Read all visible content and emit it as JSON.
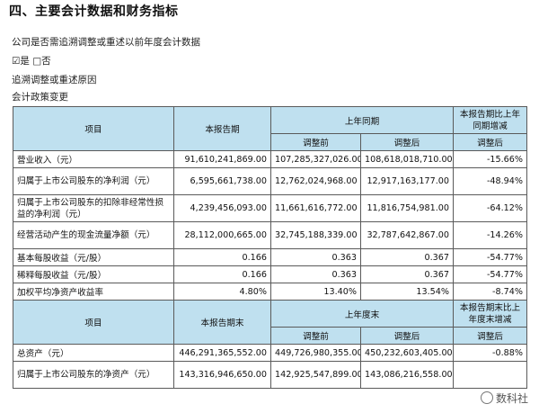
{
  "section_title": "四、主要会计数据和财务指标",
  "question": "公司是否需追溯调整或重述以前年度会计数据",
  "checkbox_yes": "☑是",
  "checkbox_no": "□否",
  "reason_label": "追溯调整或重述原因",
  "policy_change": "会计政策变更",
  "table1": {
    "header": {
      "item": "项目",
      "current": "本报告期",
      "prior_year": "上年同期",
      "change": "本报告期比上年同期增减",
      "before": "调整前",
      "after": "调整后",
      "after_change": "调整后"
    },
    "rows": [
      {
        "label": "营业收入（元）",
        "current": "91,610,241,869.00",
        "before": "107,285,327,026.00",
        "after": "108,618,018,710.00",
        "change": "-15.66%"
      },
      {
        "label": "归属于上市公司股东的净利润（元）",
        "current": "6,595,661,738.00",
        "before": "12,762,024,968.00",
        "after": "12,917,163,177.00",
        "change": "-48.94%"
      },
      {
        "label": "归属于上市公司股东的扣除非经常性损益的净利润（元）",
        "current": "4,239,456,093.00",
        "before": "11,661,616,772.00",
        "after": "11,816,754,981.00",
        "change": "-64.12%"
      },
      {
        "label": "经营活动产生的现金流量净额（元）",
        "current": "28,112,000,665.00",
        "before": "32,745,188,339.00",
        "after": "32,787,642,867.00",
        "change": "-14.26%"
      },
      {
        "label": "基本每股收益（元/股）",
        "current": "0.166",
        "before": "0.363",
        "after": "0.367",
        "change": "-54.77%"
      },
      {
        "label": "稀释每股收益（元/股）",
        "current": "0.166",
        "before": "0.363",
        "after": "0.367",
        "change": "-54.77%"
      },
      {
        "label": "加权平均净资产收益率",
        "current": "4.80%",
        "before": "13.40%",
        "after": "13.54%",
        "change": "-8.74%"
      }
    ]
  },
  "table2": {
    "header": {
      "item": "项目",
      "current": "本报告期末",
      "prior_year": "上年度末",
      "change": "本报告期末比上年度末增减",
      "before": "调整前",
      "after": "调整后",
      "after_change": "调整后"
    },
    "rows": [
      {
        "label": "总资产（元）",
        "current": "446,291,365,552.00",
        "before": "449,726,980,355.00",
        "after": "450,232,603,405.00",
        "change": "-0.88%"
      },
      {
        "label": "归属于上市公司股东的净资产（元）",
        "current": "143,316,946,650.00",
        "before": "142,925,547,899.00",
        "after": "143,086,216,558.00",
        "change": ""
      }
    ]
  },
  "watermark": "数科社"
}
